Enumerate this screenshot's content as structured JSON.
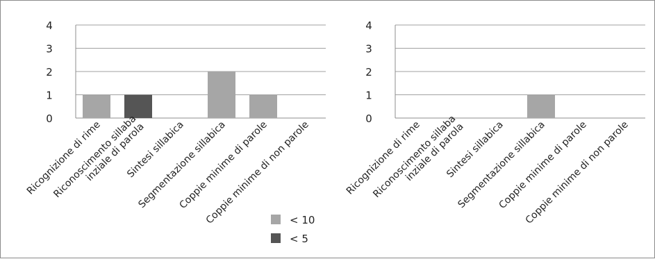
{
  "chart_data": [
    {
      "type": "bar",
      "categories": [
        "Ricognizione di rime",
        "Riconoscimento sillaba\ninziale di parola",
        "Sintesi sillabica",
        "Segmentazione sillabica",
        "Coppie minime di parole",
        "Coppie minime di non parole"
      ],
      "series": [
        {
          "name": "< 10",
          "values": [
            1,
            0,
            0,
            2,
            1,
            0
          ]
        },
        {
          "name": "< 5",
          "values": [
            0,
            1,
            0,
            0,
            0,
            0
          ]
        }
      ],
      "ylim": [
        0,
        4
      ],
      "yticks": [
        "0",
        "1",
        "2",
        "3",
        "4"
      ],
      "grid": true,
      "legend": "bottom-right",
      "colors": {
        "< 10": "#a6a6a6",
        "< 5": "#555555"
      }
    },
    {
      "type": "bar",
      "categories": [
        "Ricognizione di rime",
        "Riconoscimento sillaba\ninziale di parola",
        "Sintesi sillabica",
        "Segmentazione sillabica",
        "Coppie minime di parole",
        "Coppie minime di non parole"
      ],
      "series": [
        {
          "name": "< 10",
          "values": [
            0,
            0,
            0,
            1,
            0,
            0
          ]
        },
        {
          "name": "< 5",
          "values": [
            0,
            0,
            0,
            0,
            0,
            0
          ]
        }
      ],
      "ylim": [
        0,
        4
      ],
      "yticks": [
        "0",
        "1",
        "2",
        "3",
        "4"
      ],
      "grid": true,
      "colors": {
        "< 10": "#a6a6a6",
        "< 5": "#555555"
      }
    }
  ],
  "legend": {
    "items": [
      {
        "label": "< 10",
        "color": "#a6a6a6"
      },
      {
        "label": "< 5",
        "color": "#555555"
      }
    ]
  }
}
